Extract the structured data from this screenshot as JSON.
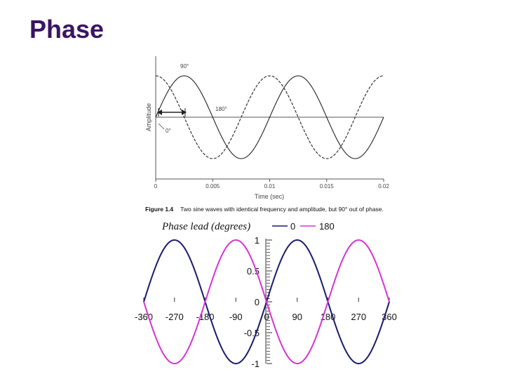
{
  "slide": {
    "title": "Phase"
  },
  "figure": {
    "number": "Figure 1.4",
    "caption": "Two sine waves with identical frequency and amplitude, but 90° out of phase."
  },
  "chart_data": [
    {
      "type": "line",
      "title": "",
      "xlabel": "Time (sec)",
      "ylabel": "Amplitude",
      "xlim": [
        0,
        0.02
      ],
      "ylim": [
        -1,
        1
      ],
      "x_tick_labels": [
        "0",
        "0.005",
        "0.01",
        "0.015",
        "0.02"
      ],
      "x_ticks": [
        0,
        0.005,
        0.01,
        0.015,
        0.02
      ],
      "grid": false,
      "frequency_hz": 100,
      "series": [
        {
          "phase_deg": 90,
          "line_style": "dashed",
          "color": "#222222"
        },
        {
          "phase_deg": 0,
          "line_style": "solid",
          "color": "#222222"
        }
      ],
      "annotations": [
        "90°",
        "180°",
        "0°"
      ]
    },
    {
      "type": "line",
      "title": "",
      "legend_title": "Phase lead (degrees)",
      "legend_placement": "top",
      "xlabel": "",
      "ylabel": "",
      "xlim": [
        -360,
        360
      ],
      "ylim": [
        -1,
        1
      ],
      "x_tick_labels": [
        "-360",
        "-270",
        "-180",
        "-90",
        "0",
        "90",
        "180",
        "270",
        "360"
      ],
      "x_ticks": [
        -360,
        -270,
        -180,
        -90,
        0,
        90,
        180,
        270,
        360
      ],
      "y_tick_labels": [
        "1",
        "0.5",
        "0",
        "-0.5",
        "-1"
      ],
      "y_ticks": [
        1,
        0.5,
        0,
        -0.5,
        -1
      ],
      "grid": false,
      "series": [
        {
          "name": "0",
          "phase_deg": 0,
          "color": "#1a1a6e"
        },
        {
          "name": "180",
          "phase_deg": 180,
          "color": "#d633d6"
        }
      ]
    }
  ]
}
